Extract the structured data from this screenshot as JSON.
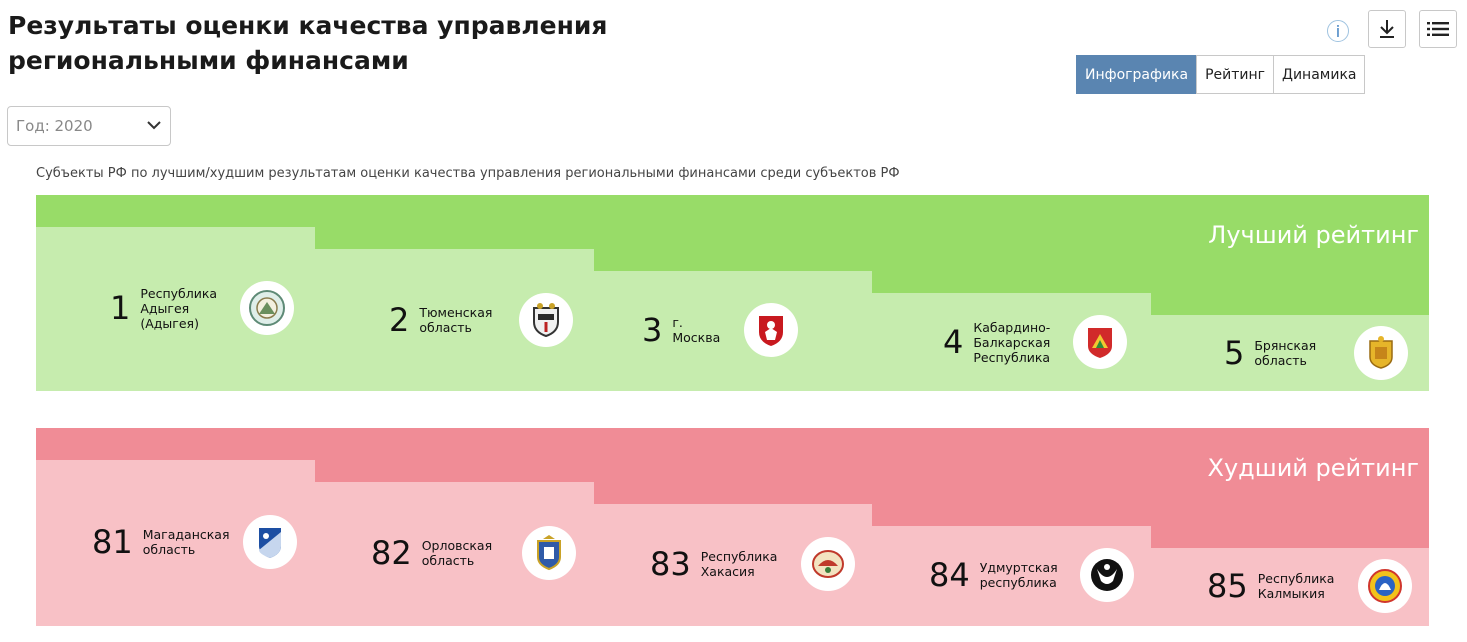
{
  "header": {
    "title": "Результаты оценки качества управления региональными финансами",
    "info_icon": "i"
  },
  "toolbar": {
    "download_icon": "download-icon",
    "menu_icon": "menu-icon"
  },
  "tabs": [
    {
      "label": "Инфографика",
      "active": true
    },
    {
      "label": "Рейтинг",
      "active": false
    },
    {
      "label": "Динамика",
      "active": false
    }
  ],
  "filter": {
    "year_label": "Год: 2020"
  },
  "subtitle": "Субъекты РФ по лучшим/худшим результатам оценки качества управления региональными финансами среди субъектов РФ",
  "colors": {
    "best_dark": "#98dc68",
    "best_light": "#c6ecae",
    "worst_dark": "#f08c96",
    "worst_light": "#f8c1c6",
    "tab_active": "#5a85b1"
  },
  "best": {
    "label": "Лучший рейтинг",
    "items": [
      {
        "rank": "1",
        "region": "Республика Адыгея (Адыгея)",
        "emblem": "adygea-emblem-icon"
      },
      {
        "rank": "2",
        "region": "Тюменская область",
        "emblem": "tyumen-emblem-icon"
      },
      {
        "rank": "3",
        "region": "г. Москва",
        "emblem": "moscow-emblem-icon"
      },
      {
        "rank": "4",
        "region": "Кабардино-Балкарская Республика",
        "emblem": "kabardino-balkaria-emblem-icon"
      },
      {
        "rank": "5",
        "region": "Брянская область",
        "emblem": "bryansk-emblem-icon"
      }
    ]
  },
  "worst": {
    "label": "Худший рейтинг",
    "items": [
      {
        "rank": "81",
        "region": "Магаданская область",
        "emblem": "magadan-emblem-icon"
      },
      {
        "rank": "82",
        "region": "Орловская область",
        "emblem": "oryol-emblem-icon"
      },
      {
        "rank": "83",
        "region": "Республика Хакасия",
        "emblem": "khakassia-emblem-icon"
      },
      {
        "rank": "84",
        "region": "Удмуртская республика",
        "emblem": "udmurtia-emblem-icon"
      },
      {
        "rank": "85",
        "region": "Республика Калмыкия",
        "emblem": "kalmykia-emblem-icon"
      }
    ]
  }
}
